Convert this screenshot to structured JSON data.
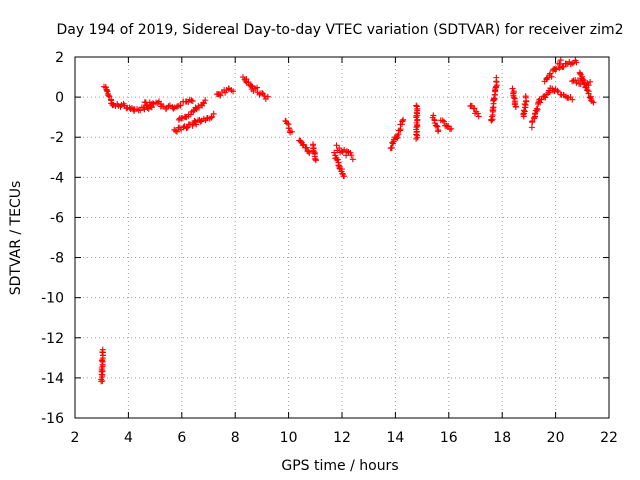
{
  "chart_data": {
    "type": "scatter",
    "title": "Day 194 of 2019, Sidereal Day-to-day VTEC variation (SDTVAR) for receiver zim2",
    "xlabel": "GPS time / hours",
    "ylabel": "SDTVAR / TECUs",
    "xlim": [
      2,
      22
    ],
    "ylim": [
      -16,
      2
    ],
    "xticks": [
      2,
      4,
      6,
      8,
      10,
      12,
      14,
      16,
      18,
      20,
      22
    ],
    "yticks": [
      -16,
      -14,
      -12,
      -10,
      -8,
      -6,
      -4,
      -2,
      0,
      2
    ],
    "grid": true,
    "marker": "+",
    "color": "#ff0000",
    "segments": [
      [
        3.0,
        -14.2,
        3.03,
        -12.6,
        0.04
      ],
      [
        3.1,
        0.6,
        3.4,
        -0.3,
        0.12
      ],
      [
        3.4,
        -0.3,
        4.2,
        -0.6,
        0.12
      ],
      [
        4.2,
        -0.6,
        4.9,
        -0.5,
        0.1
      ],
      [
        4.6,
        -0.3,
        5.2,
        -0.3,
        0.1
      ],
      [
        5.2,
        -0.5,
        5.7,
        -0.5,
        0.1
      ],
      [
        5.7,
        -0.5,
        6.4,
        -0.1,
        0.1
      ],
      [
        5.7,
        -1.7,
        6.5,
        -1.3,
        0.12
      ],
      [
        6.5,
        -1.3,
        7.2,
        -0.9,
        0.1
      ],
      [
        5.9,
        -1.2,
        6.9,
        -0.2,
        0.1
      ],
      [
        7.3,
        0.1,
        7.9,
        0.4,
        0.12
      ],
      [
        8.3,
        1.0,
        8.6,
        0.5,
        0.1
      ],
      [
        8.6,
        0.5,
        9.2,
        0.0,
        0.15
      ],
      [
        9.9,
        -1.2,
        10.1,
        -1.8,
        0.1
      ],
      [
        10.4,
        -2.1,
        10.8,
        -2.8,
        0.1
      ],
      [
        10.9,
        -2.3,
        11.0,
        -3.2,
        0.08
      ],
      [
        11.7,
        -2.8,
        12.1,
        -4.0,
        0.12
      ],
      [
        11.8,
        -2.5,
        12.4,
        -3.0,
        0.15
      ],
      [
        13.8,
        -2.6,
        14.2,
        -1.6,
        0.12
      ],
      [
        14.2,
        -1.4,
        14.3,
        -1.1,
        0.05
      ],
      [
        14.8,
        -2.1,
        14.8,
        -0.4,
        0.04
      ],
      [
        15.4,
        -1.0,
        15.6,
        -1.7,
        0.1
      ],
      [
        15.7,
        -1.2,
        16.1,
        -1.6,
        0.1
      ],
      [
        16.8,
        -0.4,
        17.1,
        -0.9,
        0.1
      ],
      [
        17.6,
        -1.2,
        17.8,
        0.9,
        0.1
      ],
      [
        18.4,
        0.4,
        18.5,
        -0.5,
        0.04
      ],
      [
        18.8,
        -1.0,
        18.9,
        0.0,
        0.06
      ],
      [
        19.1,
        -1.4,
        19.4,
        -0.2,
        0.12
      ],
      [
        19.4,
        -0.2,
        19.8,
        0.3,
        0.1
      ],
      [
        19.6,
        0.8,
        20.2,
        1.7,
        0.15
      ],
      [
        19.8,
        0.5,
        20.6,
        -0.1,
        0.1
      ],
      [
        20.2,
        1.5,
        20.8,
        1.8,
        0.1
      ],
      [
        20.6,
        0.8,
        21.3,
        0.7,
        0.12
      ],
      [
        20.9,
        1.2,
        21.4,
        -0.3,
        0.1
      ]
    ]
  }
}
